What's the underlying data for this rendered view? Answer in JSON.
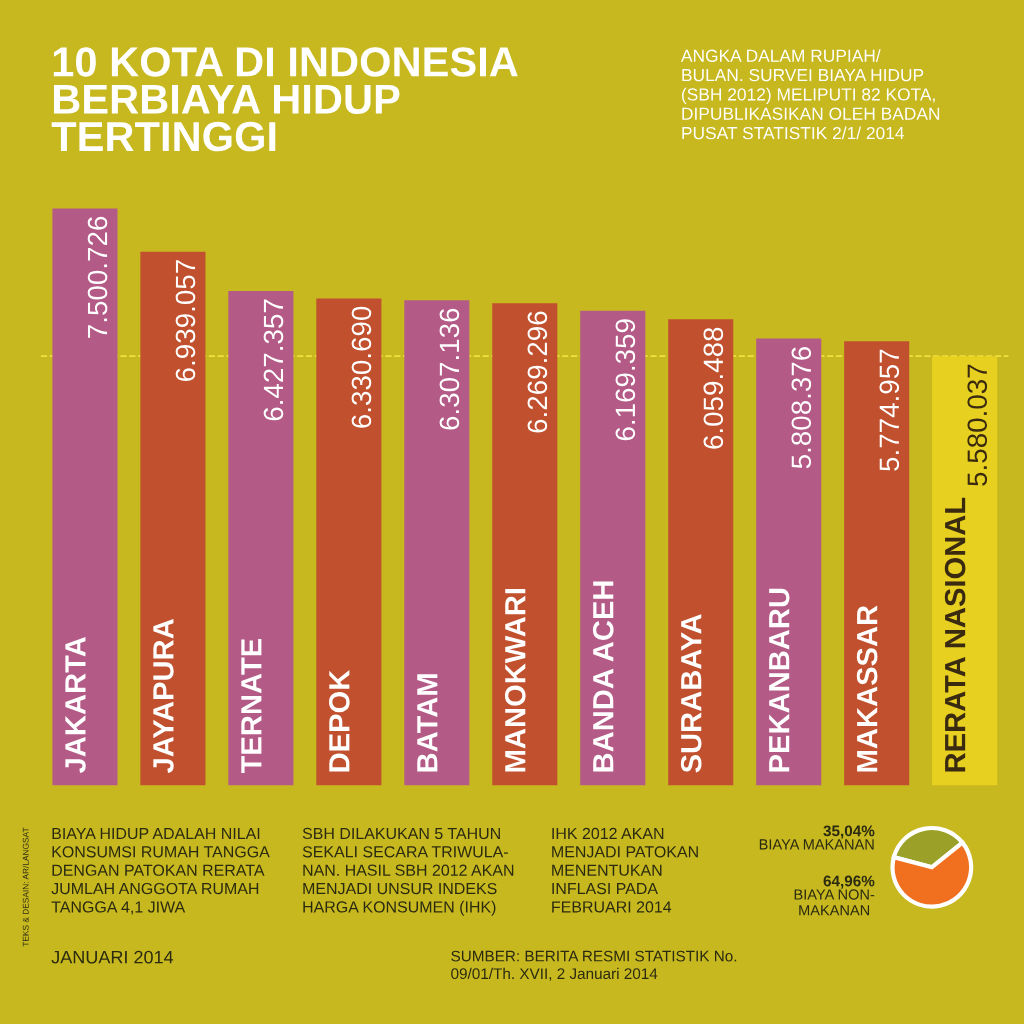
{
  "chart_data": [
    {
      "type": "bar",
      "title": "10 KOTA DI INDONESIA\nBERBIAYA HIDUP\nTERTINGGI",
      "subtitle": "ANGKA DALAM RUPIAH/\nBULAN. SURVEI BIAYA HIDUP\n(SBH 2012) MELIPUTI 82 KOTA,\nDIPUBLIKASIKAN OLEH BADAN\nPUSAT STATISTIK 2/1/ 2014",
      "categories": [
        "JAKARTA",
        "JAYAPURA",
        "TERNATE",
        "DEPOK",
        "BATAM",
        "MANOKWARI",
        "BANDA ACEH",
        "SURABAYA",
        "PEKANBARU",
        "MAKASSAR",
        "RERATA NASIONAL"
      ],
      "values": [
        7500726,
        6939057,
        6427357,
        6330690,
        6307136,
        6269296,
        6169359,
        6059488,
        5808376,
        5774957,
        5580037
      ],
      "value_labels": [
        "7.500.726",
        "6.939.057",
        "6.427.357",
        "6.330.690",
        "6.307.136",
        "6.269.296",
        "6.169.359",
        "6.059.488",
        "5.808.376",
        "5.774.957",
        "5.580.037"
      ],
      "colors": [
        "#b45a86",
        "#c0502e",
        "#b45a86",
        "#c0502e",
        "#b45a86",
        "#c0502e",
        "#b45a86",
        "#c0502e",
        "#b45a86",
        "#c0502e",
        "#e8d020"
      ],
      "ref_lines": [
        {
          "axis": "y",
          "value": 5580037,
          "color": "#f0e040",
          "line_style": "dashed"
        }
      ],
      "annotations": [
        "BIAYA HIDUP ADALAH NILAI\nKONSUMSI RUMAH TANGGA\nDENGAN PATOKAN RERATA\nJUMLAH ANGGOTA RUMAH\nTANGGA 4,1 JIWA",
        "SBH DILAKUKAN 5 TAHUN\nSEKALI SECARA TRIWULA-\nNAN. HASIL SBH 2012 AKAN\nMENJADI UNSUR INDEKS\nHARGA KONSUMEN (IHK)",
        "IHK 2012 AKAN\nMENJADI PATOKAN\nMENENTUKAN\nINFLASI PADA\nFEBRUARI 2014",
        "JANUARI 2014",
        "SUMBER: BERITA RESMI STATISTIK No.\n09/01/Th. XVII, 2 Januari 2014",
        "TEKS & DESAIN: AR/LANGSAT"
      ]
    },
    {
      "type": "pie",
      "categories": [
        "BIAYA MAKANAN",
        "BIAYA NON-\nMAKANAN"
      ],
      "values": [
        35.04,
        64.96
      ],
      "value_labels": [
        "35,04%",
        "64,96%"
      ],
      "colors": [
        "#9aa028",
        "#f07020"
      ]
    }
  ]
}
